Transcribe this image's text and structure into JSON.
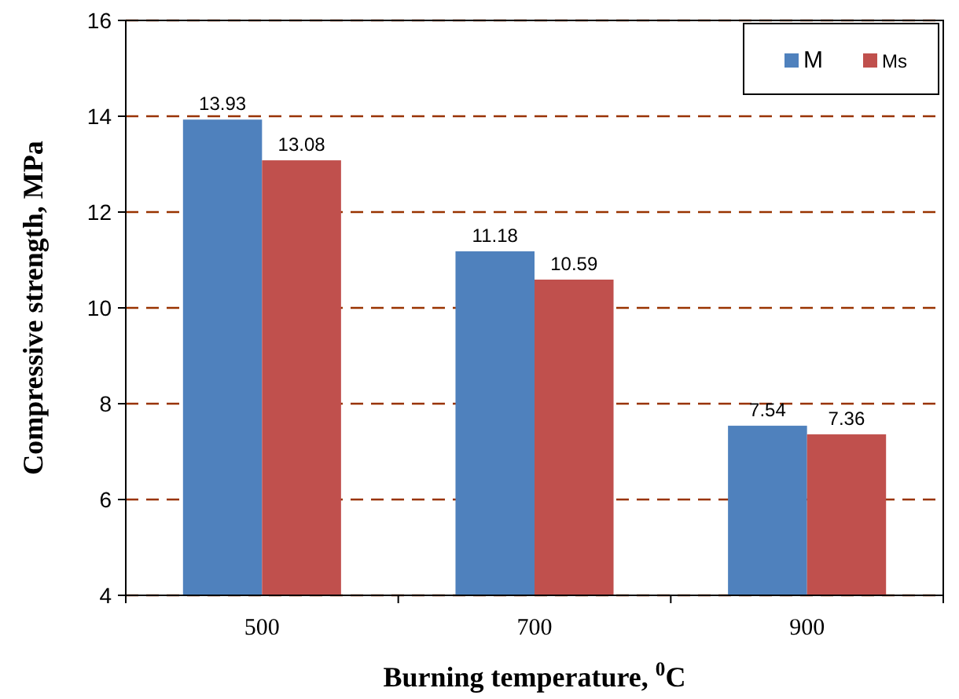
{
  "chart_data": {
    "type": "bar",
    "xlabel": "Burning temperature, $^{0}$C",
    "ylabel": "Compressive strength, MPa",
    "categories": [
      "500",
      "700",
      "900"
    ],
    "series": [
      {
        "name": "M",
        "color": "#4f81bd",
        "values": [
          13.93,
          11.18,
          7.54
        ]
      },
      {
        "name": "Ms",
        "color": "#c0504d",
        "values": [
          13.08,
          10.59,
          7.36
        ]
      }
    ],
    "ylim": [
      4,
      16
    ],
    "yticks": [
      4,
      6,
      8,
      10,
      12,
      14,
      16
    ],
    "grid": "y",
    "legend": "top right",
    "data_labels": true
  }
}
